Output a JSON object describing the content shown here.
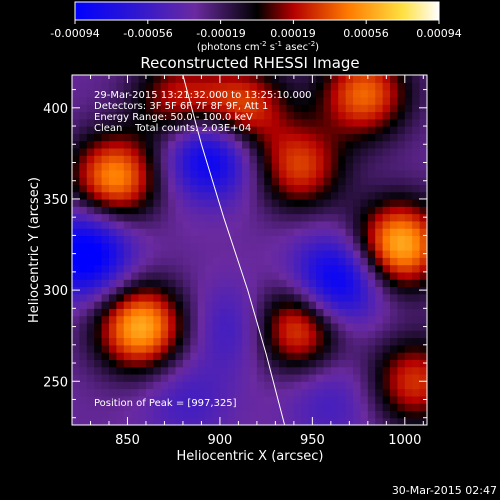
{
  "chart_data": {
    "type": "heatmap",
    "title": "Reconstructed RHESSI Image",
    "xlabel": "Heliocentric X (arcsec)",
    "ylabel": "Heliocentric Y (arcsec)",
    "xlim": [
      820,
      1012
    ],
    "ylim": [
      226,
      418
    ],
    "xticks": [
      850,
      900,
      950,
      1000
    ],
    "yticks": [
      250,
      300,
      350,
      400
    ],
    "colorbar": {
      "range": [
        -0.00094,
        0.00094
      ],
      "ticks": [
        "-0.00094",
        "-0.00056",
        "-0.00019",
        "0.00019",
        "0.00056",
        "0.00094"
      ],
      "unit_prefix": "(photons cm",
      "unit_sup1": "-2",
      "unit_mid1": " s",
      "unit_sup2": "-1",
      "unit_mid2": " asec",
      "unit_sup3": "-2",
      "unit_suffix": ")",
      "colormap": [
        "#0000ff",
        "#5a1e96",
        "#000000",
        "#b40000",
        "#ff8c00",
        "#ffff64",
        "#ffffff"
      ]
    },
    "info_lines": [
      "29-Mar-2015 13:21:32.000 to 13:25:10.000",
      "Detectors: 3F 5F 6F 7F 8F 9F, Att 1",
      "Energy Range: 50.0 - 100.0 keV",
      "Clean    Total counts: 2.03E+04"
    ],
    "peak_label": "Position of Peak = [997,325]",
    "limb_curve": [
      [
        880,
        418
      ],
      [
        890,
        380
      ],
      [
        902,
        340
      ],
      [
        915,
        300
      ],
      [
        925,
        265
      ],
      [
        935,
        226
      ]
    ],
    "sources": [
      {
        "x": 843,
        "y": 362,
        "value": 0.00082
      },
      {
        "x": 877,
        "y": 405,
        "value": 0.00052
      },
      {
        "x": 912,
        "y": 400,
        "value": 0.00068
      },
      {
        "x": 943,
        "y": 368,
        "value": 0.00062
      },
      {
        "x": 978,
        "y": 408,
        "value": 0.00072
      },
      {
        "x": 997,
        "y": 325,
        "value": 0.00094
      },
      {
        "x": 857,
        "y": 280,
        "value": 0.00092
      },
      {
        "x": 942,
        "y": 280,
        "value": 0.00074
      },
      {
        "x": 1005,
        "y": 250,
        "value": 0.0006
      },
      {
        "x": 828,
        "y": 320,
        "value": -0.00085
      },
      {
        "x": 895,
        "y": 375,
        "value": -0.0008
      },
      {
        "x": 963,
        "y": 305,
        "value": -0.00082
      },
      {
        "x": 908,
        "y": 280,
        "value": -0.00038
      },
      {
        "x": 882,
        "y": 240,
        "value": -0.00032
      },
      {
        "x": 960,
        "y": 240,
        "value": -0.00032
      }
    ],
    "background_value": -0.0003
  },
  "footer_timestamp": "30-Mar-2015 02:47"
}
